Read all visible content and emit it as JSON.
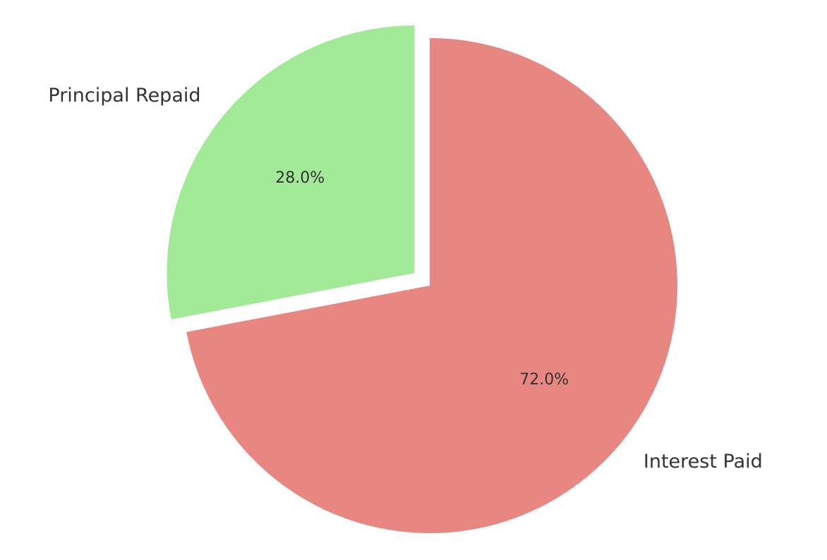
{
  "chart_data": {
    "type": "pie",
    "title": "",
    "categories": [
      "Interest Paid",
      "Principal Repaid"
    ],
    "values": [
      72.0,
      28.0
    ],
    "percent_labels": [
      "72.0%",
      "28.0%"
    ],
    "colors": [
      "#e88682",
      "#a2e998"
    ],
    "exploded": [
      false,
      true
    ],
    "start_angle_deg": 90,
    "direction": "clockwise",
    "legend": "none"
  }
}
